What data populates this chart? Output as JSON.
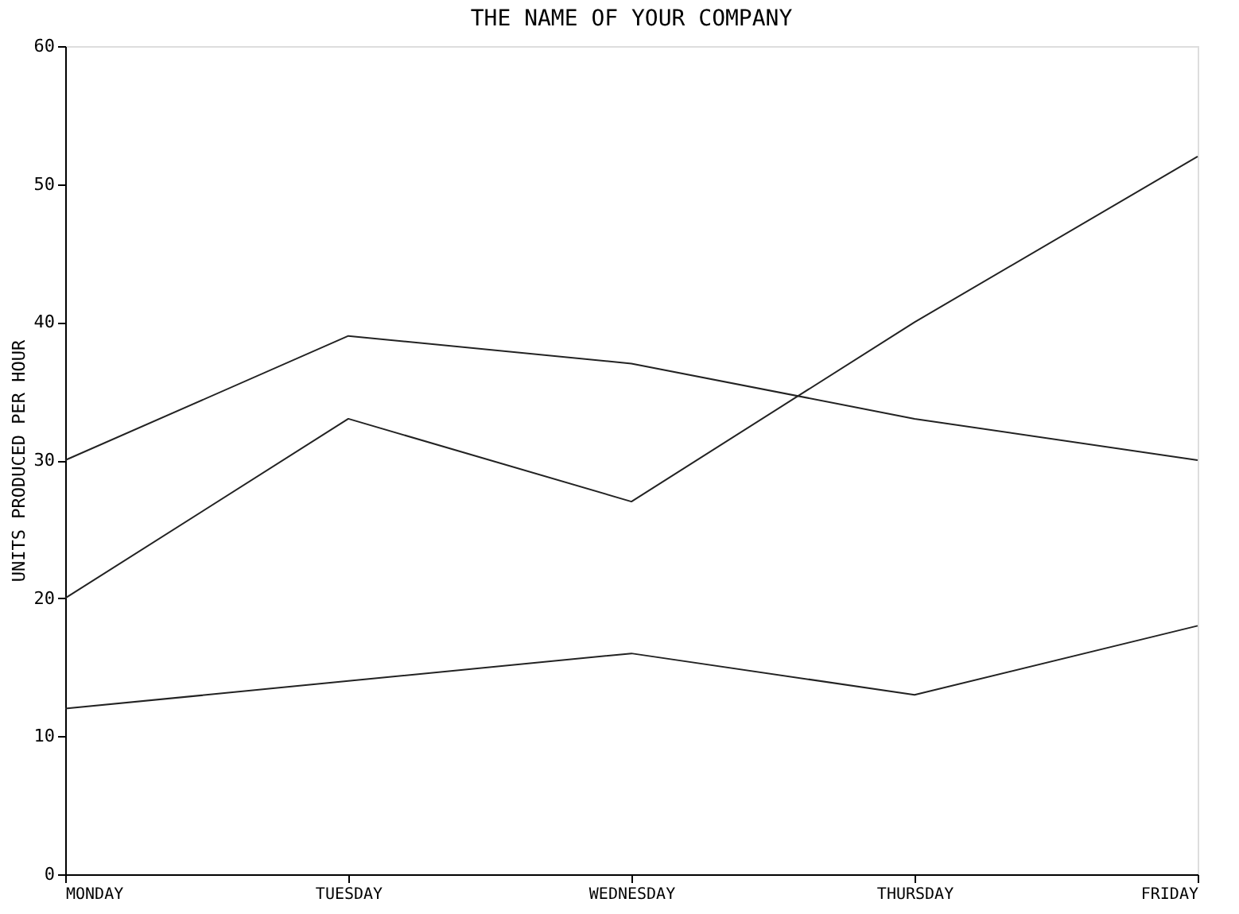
{
  "chart_data": {
    "type": "line",
    "title": "THE NAME OF YOUR COMPANY",
    "ylabel": "UNITS PRODUCED PER HOUR",
    "categories": [
      "MONDAY",
      "TUESDAY",
      "WEDNESDAY",
      "THURSDAY",
      "FRIDAY"
    ],
    "series": [
      {
        "color": "#222222",
        "values": [
          30,
          39,
          37,
          33,
          30
        ]
      },
      {
        "color": "#222222",
        "values": [
          20,
          33,
          27,
          40,
          52
        ]
      },
      {
        "color": "#222222",
        "values": [
          12,
          14,
          16,
          13,
          18
        ]
      }
    ],
    "ylim": [
      0,
      60
    ],
    "yticks": [
      0,
      10,
      20,
      30,
      40,
      50,
      60
    ],
    "grid": false,
    "legend": false,
    "marker": "none",
    "line_style": "solid"
  }
}
